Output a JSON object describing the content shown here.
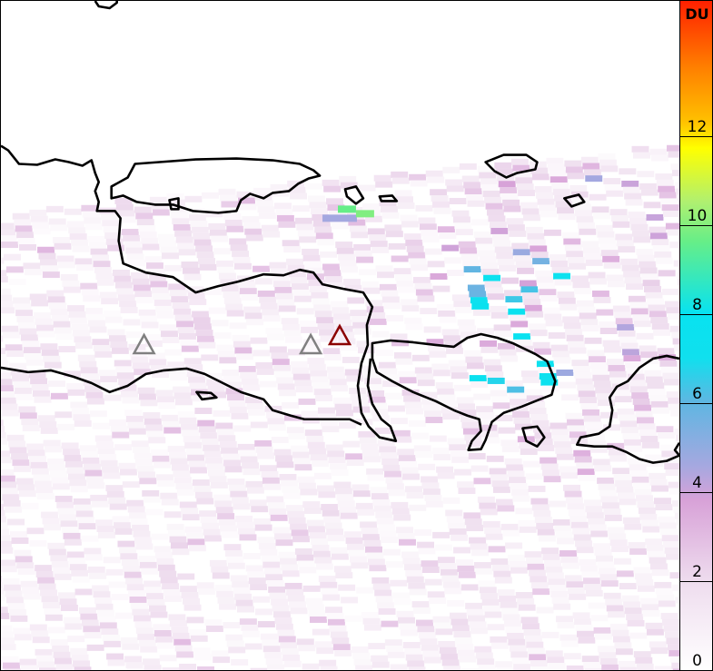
{
  "colorbar": {
    "unit": "DU",
    "range": [
      0,
      15
    ],
    "ticks": [
      "0",
      "2",
      "4",
      "6",
      "8",
      "10",
      "12"
    ],
    "colors": [
      "#ffffff",
      "#eedcee",
      "#d8a2d8",
      "#a4a8e0",
      "#5fb6e2",
      "#10e0ee",
      "#08e2f0",
      "#66ee88",
      "#b0f070",
      "#ffff00",
      "#ffc000",
      "#ff8000",
      "#ff2000"
    ]
  },
  "markers": [
    {
      "type": "volcano",
      "color": "#808080"
    },
    {
      "type": "volcano",
      "color": "#808080"
    },
    {
      "type": "volcano",
      "color": "#8b0000"
    }
  ]
}
